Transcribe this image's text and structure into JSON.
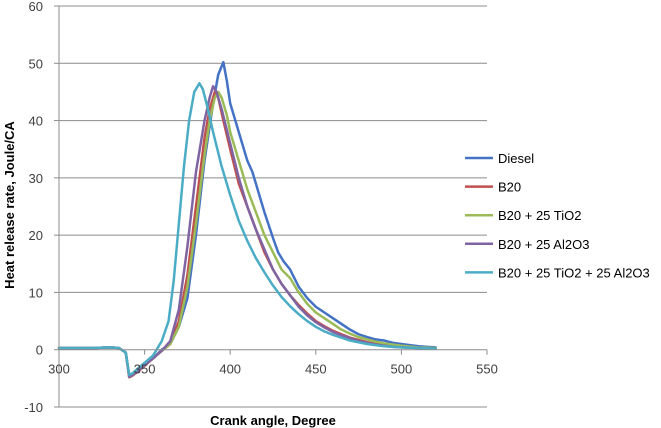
{
  "chart_data": {
    "type": "line",
    "title": "",
    "xlabel": "Crank angle, Degree",
    "ylabel": "Heat release rate, Joule/CA",
    "xlim": [
      300,
      550
    ],
    "ylim": [
      -10,
      60
    ],
    "xticks": [
      300,
      350,
      400,
      450,
      500,
      550
    ],
    "yticks": [
      -10,
      0,
      10,
      20,
      30,
      40,
      50,
      60
    ],
    "grid": "horizontal",
    "legend_position": "right",
    "series": [
      {
        "name": "Diesel",
        "color": "#4472C4",
        "points": [
          [
            300,
            0.3
          ],
          [
            320,
            0.3
          ],
          [
            330,
            0.4
          ],
          [
            335,
            0.3
          ],
          [
            339,
            -0.5
          ],
          [
            341,
            -4.5
          ],
          [
            343,
            -4.2
          ],
          [
            346,
            -3.5
          ],
          [
            350,
            -2.5
          ],
          [
            355,
            -1.5
          ],
          [
            360,
            0
          ],
          [
            365,
            1
          ],
          [
            370,
            4
          ],
          [
            375,
            9
          ],
          [
            380,
            20
          ],
          [
            385,
            33
          ],
          [
            390,
            43
          ],
          [
            393,
            48
          ],
          [
            396,
            50.2
          ],
          [
            398,
            47
          ],
          [
            400,
            43
          ],
          [
            403,
            40
          ],
          [
            405,
            38
          ],
          [
            408,
            35
          ],
          [
            410,
            33
          ],
          [
            413,
            31
          ],
          [
            416,
            28
          ],
          [
            420,
            24
          ],
          [
            425,
            19.5
          ],
          [
            428,
            17
          ],
          [
            431,
            15.5
          ],
          [
            435,
            14
          ],
          [
            440,
            11
          ],
          [
            445,
            9
          ],
          [
            450,
            7.5
          ],
          [
            455,
            6.5
          ],
          [
            460,
            5.5
          ],
          [
            465,
            4.5
          ],
          [
            470,
            3.5
          ],
          [
            475,
            2.7
          ],
          [
            480,
            2.2
          ],
          [
            485,
            1.8
          ],
          [
            490,
            1.6
          ],
          [
            495,
            1.2
          ],
          [
            500,
            1
          ],
          [
            505,
            0.8
          ],
          [
            510,
            0.6
          ],
          [
            515,
            0.5
          ],
          [
            520,
            0.4
          ]
        ]
      },
      {
        "name": "B20",
        "color": "#C0504D",
        "points": [
          [
            300,
            0.3
          ],
          [
            320,
            0.3
          ],
          [
            330,
            0.4
          ],
          [
            335,
            0.3
          ],
          [
            339,
            -0.5
          ],
          [
            341,
            -4.8
          ],
          [
            343,
            -4.5
          ],
          [
            346,
            -3.8
          ],
          [
            350,
            -2.8
          ],
          [
            355,
            -1.5
          ],
          [
            360,
            -0.2
          ],
          [
            365,
            1
          ],
          [
            370,
            5
          ],
          [
            375,
            13
          ],
          [
            380,
            25
          ],
          [
            385,
            37
          ],
          [
            388,
            42
          ],
          [
            391,
            45
          ],
          [
            393,
            44
          ],
          [
            396,
            40
          ],
          [
            400,
            35
          ],
          [
            405,
            29
          ],
          [
            410,
            25
          ],
          [
            415,
            21
          ],
          [
            420,
            17
          ],
          [
            425,
            14
          ],
          [
            430,
            11.5
          ],
          [
            435,
            9.5
          ],
          [
            440,
            7.8
          ],
          [
            445,
            6.3
          ],
          [
            450,
            5
          ],
          [
            455,
            4.1
          ],
          [
            460,
            3.3
          ],
          [
            465,
            2.7
          ],
          [
            470,
            2.1
          ],
          [
            475,
            1.7
          ],
          [
            480,
            1.3
          ],
          [
            485,
            1
          ],
          [
            490,
            0.8
          ],
          [
            495,
            0.6
          ],
          [
            500,
            0.5
          ],
          [
            510,
            0.3
          ],
          [
            520,
            0.2
          ]
        ]
      },
      {
        "name": "B20 + 25 TiO2",
        "color": "#9BBB59",
        "points": [
          [
            300,
            0.3
          ],
          [
            320,
            0.3
          ],
          [
            330,
            0.4
          ],
          [
            335,
            0.3
          ],
          [
            339,
            -0.5
          ],
          [
            341,
            -4.6
          ],
          [
            343,
            -4.3
          ],
          [
            346,
            -3.6
          ],
          [
            350,
            -2.6
          ],
          [
            355,
            -1.5
          ],
          [
            360,
            -0.2
          ],
          [
            365,
            1
          ],
          [
            370,
            4
          ],
          [
            375,
            11
          ],
          [
            380,
            22
          ],
          [
            385,
            34
          ],
          [
            388,
            40
          ],
          [
            391,
            44
          ],
          [
            393,
            45
          ],
          [
            395,
            44
          ],
          [
            398,
            41
          ],
          [
            400,
            38
          ],
          [
            405,
            33
          ],
          [
            410,
            28
          ],
          [
            415,
            24
          ],
          [
            420,
            20
          ],
          [
            425,
            17
          ],
          [
            430,
            14
          ],
          [
            435,
            12.5
          ],
          [
            440,
            10
          ],
          [
            445,
            8
          ],
          [
            450,
            6.5
          ],
          [
            455,
            5.5
          ],
          [
            460,
            4.5
          ],
          [
            465,
            3.5
          ],
          [
            470,
            2.8
          ],
          [
            475,
            2.2
          ],
          [
            480,
            1.8
          ],
          [
            485,
            1.4
          ],
          [
            490,
            1.1
          ],
          [
            495,
            0.9
          ],
          [
            500,
            0.7
          ],
          [
            510,
            0.4
          ],
          [
            520,
            0.3
          ]
        ]
      },
      {
        "name": "B20 + 25 Al2O3",
        "color": "#8064A2",
        "points": [
          [
            300,
            0.3
          ],
          [
            320,
            0.3
          ],
          [
            330,
            0.4
          ],
          [
            335,
            0.3
          ],
          [
            339,
            -0.5
          ],
          [
            341,
            -4.7
          ],
          [
            343,
            -4.4
          ],
          [
            346,
            -3.7
          ],
          [
            350,
            -2.7
          ],
          [
            355,
            -1.5
          ],
          [
            360,
            -0.2
          ],
          [
            365,
            1.5
          ],
          [
            370,
            7
          ],
          [
            375,
            18
          ],
          [
            380,
            31
          ],
          [
            385,
            40
          ],
          [
            388,
            44
          ],
          [
            390,
            46
          ],
          [
            392,
            45
          ],
          [
            395,
            42
          ],
          [
            400,
            36
          ],
          [
            405,
            30
          ],
          [
            410,
            25
          ],
          [
            415,
            21
          ],
          [
            420,
            17.5
          ],
          [
            425,
            14
          ],
          [
            430,
            11.5
          ],
          [
            435,
            9.5
          ],
          [
            440,
            7.5
          ],
          [
            445,
            6
          ],
          [
            450,
            4.8
          ],
          [
            455,
            3.9
          ],
          [
            460,
            3.1
          ],
          [
            465,
            2.5
          ],
          [
            470,
            2
          ],
          [
            475,
            1.5
          ],
          [
            480,
            1.2
          ],
          [
            485,
            0.9
          ],
          [
            490,
            0.7
          ],
          [
            495,
            0.5
          ],
          [
            500,
            0.4
          ],
          [
            510,
            0.3
          ],
          [
            520,
            0.2
          ]
        ]
      },
      {
        "name": "B20 + 25 TiO2 + 25 Al2O3",
        "color": "#4BACC6",
        "points": [
          [
            300,
            0.3
          ],
          [
            320,
            0.3
          ],
          [
            330,
            0.4
          ],
          [
            335,
            0.3
          ],
          [
            339,
            -0.5
          ],
          [
            341,
            -4.4
          ],
          [
            343,
            -4.1
          ],
          [
            346,
            -3.3
          ],
          [
            350,
            -2.3
          ],
          [
            355,
            -1
          ],
          [
            360,
            1.5
          ],
          [
            364,
            5
          ],
          [
            367,
            12
          ],
          [
            370,
            22
          ],
          [
            373,
            32
          ],
          [
            376,
            40
          ],
          [
            379,
            45
          ],
          [
            382,
            46.5
          ],
          [
            384,
            45.5
          ],
          [
            387,
            42
          ],
          [
            390,
            38
          ],
          [
            395,
            32
          ],
          [
            400,
            27
          ],
          [
            405,
            22.5
          ],
          [
            410,
            19
          ],
          [
            415,
            16
          ],
          [
            420,
            13.5
          ],
          [
            425,
            11.2
          ],
          [
            430,
            9.2
          ],
          [
            435,
            7.6
          ],
          [
            440,
            6.2
          ],
          [
            445,
            5
          ],
          [
            450,
            4
          ],
          [
            455,
            3.2
          ],
          [
            460,
            2.6
          ],
          [
            465,
            2.1
          ],
          [
            470,
            1.6
          ],
          [
            475,
            1.3
          ],
          [
            480,
            1
          ],
          [
            485,
            0.8
          ],
          [
            490,
            0.6
          ],
          [
            500,
            0.4
          ],
          [
            510,
            0.3
          ],
          [
            520,
            0.2
          ]
        ]
      }
    ]
  }
}
